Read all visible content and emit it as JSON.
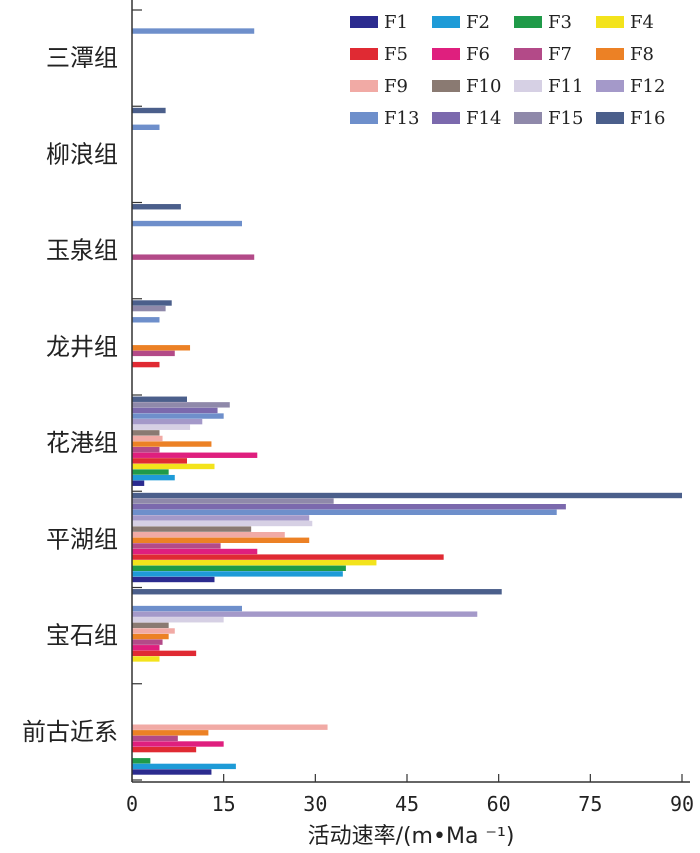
{
  "chart_data": {
    "type": "bar",
    "orientation": "horizontal",
    "categories": [
      "三潭组",
      "柳浪组",
      "玉泉组",
      "龙井组",
      "花港组",
      "平湖组",
      "宝石组",
      "前古近系"
    ],
    "xlabel": "活动速率/(m•Ma ⁻¹)",
    "xlim": [
      0,
      90
    ],
    "xticks": [
      0,
      15,
      30,
      45,
      60,
      75,
      90
    ],
    "legend_position": "top-right",
    "series": [
      {
        "name": "F1",
        "color": "#2b2b8f",
        "values": [
          null,
          null,
          null,
          null,
          2,
          13.5,
          null,
          13
        ]
      },
      {
        "name": "F2",
        "color": "#1e9bd7",
        "values": [
          null,
          null,
          null,
          null,
          7,
          34.5,
          null,
          17
        ]
      },
      {
        "name": "F3",
        "color": "#1f9a48",
        "values": [
          null,
          null,
          null,
          null,
          6,
          35,
          null,
          3
        ]
      },
      {
        "name": "F4",
        "color": "#f3e31c",
        "values": [
          null,
          null,
          null,
          null,
          13.5,
          40,
          4.5,
          null
        ]
      },
      {
        "name": "F5",
        "color": "#e02a33",
        "values": [
          null,
          null,
          null,
          4.5,
          9,
          51,
          10.5,
          10.5
        ]
      },
      {
        "name": "F6",
        "color": "#df1f7e",
        "values": [
          null,
          null,
          null,
          null,
          20.5,
          20.5,
          4.5,
          15
        ]
      },
      {
        "name": "F7",
        "color": "#b34a88",
        "values": [
          null,
          null,
          20,
          7,
          4.5,
          14.5,
          5,
          7.5
        ]
      },
      {
        "name": "F8",
        "color": "#ec8125",
        "values": [
          null,
          null,
          null,
          9.5,
          13,
          29,
          6,
          12.5
        ]
      },
      {
        "name": "F9",
        "color": "#f1aaa5",
        "values": [
          null,
          null,
          null,
          null,
          5,
          25,
          7,
          32
        ]
      },
      {
        "name": "F10",
        "color": "#8a7a72",
        "values": [
          null,
          null,
          null,
          null,
          4.5,
          19.5,
          6,
          null
        ]
      },
      {
        "name": "F11",
        "color": "#d6d0e4",
        "values": [
          null,
          null,
          null,
          null,
          9.5,
          29.5,
          15,
          null
        ]
      },
      {
        "name": "F12",
        "color": "#a499c9",
        "values": [
          null,
          null,
          null,
          null,
          11.5,
          29,
          56.5,
          null
        ]
      },
      {
        "name": "F13",
        "color": "#6e8fcb",
        "values": [
          20,
          4.5,
          18,
          4.5,
          15,
          69.5,
          18,
          null
        ]
      },
      {
        "name": "F14",
        "color": "#7b69ad",
        "values": [
          null,
          null,
          null,
          null,
          14,
          71,
          null,
          null
        ]
      },
      {
        "name": "F15",
        "color": "#8f89aa",
        "values": [
          null,
          null,
          null,
          5.5,
          16,
          33,
          null,
          null
        ]
      },
      {
        "name": "F16",
        "color": "#4b5f8b",
        "values": [
          null,
          5.5,
          8,
          6.5,
          9,
          90,
          60.5,
          null
        ]
      }
    ]
  }
}
